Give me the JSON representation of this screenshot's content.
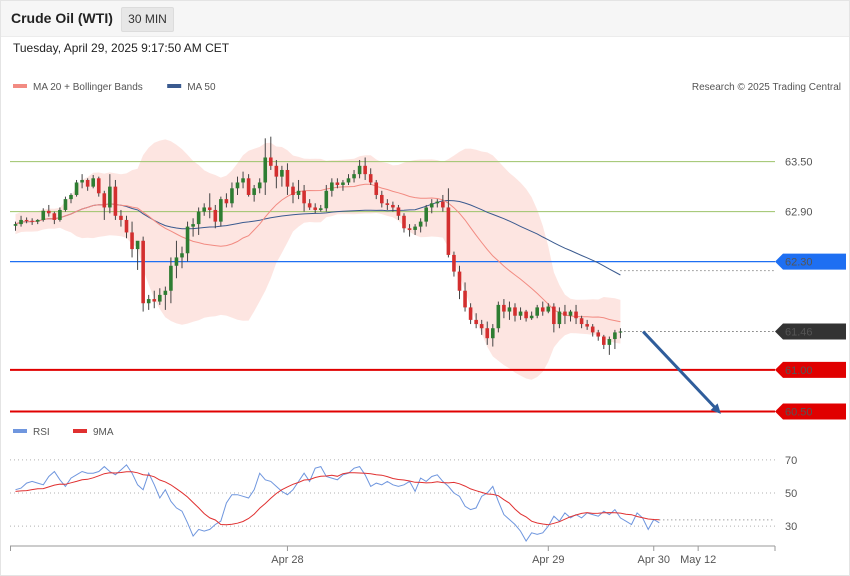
{
  "header": {
    "title": "Crude Oil (WTI)",
    "timeframe": "30 MIN",
    "datetime": "Tuesday, April 29, 2025 9:17:50 AM CET"
  },
  "colors": {
    "bullish": "#2e7d32",
    "bearish": "#d32f2f",
    "ma20": "#f28b82",
    "band_fill": "#fde0dc",
    "ma50": "#3a5a8f",
    "support": "#e00000",
    "pivot": "#1e6ff2",
    "resistance": "#9dc36a",
    "last_price": "#333333",
    "arrow": "#2f5d9b",
    "rsi": "#6f96de",
    "rsi_ma": "#e03030"
  },
  "chart_data": [
    {
      "type": "candlestick",
      "legend": [
        {
          "label": "MA 20 + Bollinger Bands",
          "color": "#f28b82"
        },
        {
          "label": "MA 50",
          "color": "#3a5a8f"
        }
      ],
      "credit": "Research © 2025 Trading Central",
      "y_ticks": [
        "63.50",
        "62.90",
        "62.30",
        "61.46",
        "61.00",
        "60.50"
      ],
      "ylim": [
        60.47,
        63.88
      ],
      "x_ticks": [
        {
          "label": "Apr 28",
          "index": 49
        },
        {
          "label": "Apr 29",
          "index": 96
        },
        {
          "label": "Apr 30",
          "index": 115
        },
        {
          "label": "May 12",
          "index": 123
        }
      ],
      "levels": [
        {
          "label": "63.50",
          "value": 63.5,
          "role": "resistance"
        },
        {
          "label": "62.90",
          "value": 62.9,
          "role": "resistance"
        },
        {
          "label": "62.30",
          "value": 62.3,
          "role": "pivot"
        },
        {
          "label": "61.46",
          "value": 61.46,
          "role": "last"
        },
        {
          "label": "61.00",
          "value": 61.0,
          "role": "support"
        },
        {
          "label": "60.50",
          "value": 60.5,
          "role": "support"
        }
      ],
      "forecast_arrow": {
        "from_index": 112,
        "from_value": 61.46,
        "to_index": 126,
        "to_value": 60.5
      },
      "candles": [
        [
          62.73,
          62.78,
          62.67,
          62.75
        ],
        [
          62.75,
          62.85,
          62.72,
          62.8
        ],
        [
          62.8,
          62.83,
          62.76,
          62.79
        ],
        [
          62.79,
          62.82,
          62.74,
          62.78
        ],
        [
          62.78,
          62.81,
          62.75,
          62.8
        ],
        [
          62.8,
          62.94,
          62.78,
          62.91
        ],
        [
          62.91,
          62.98,
          62.84,
          62.88
        ],
        [
          62.88,
          62.9,
          62.75,
          62.8
        ],
        [
          62.8,
          62.95,
          62.78,
          62.92
        ],
        [
          62.92,
          63.08,
          62.9,
          63.05
        ],
        [
          63.05,
          63.12,
          63.0,
          63.1
        ],
        [
          63.1,
          63.28,
          63.08,
          63.25
        ],
        [
          63.25,
          63.35,
          63.18,
          63.28
        ],
        [
          63.28,
          63.3,
          63.15,
          63.2
        ],
        [
          63.2,
          63.34,
          63.18,
          63.3
        ],
        [
          63.3,
          63.32,
          63.08,
          63.12
        ],
        [
          63.12,
          63.15,
          62.8,
          62.95
        ],
        [
          62.95,
          63.35,
          62.88,
          63.2
        ],
        [
          63.2,
          63.28,
          62.8,
          62.85
        ],
        [
          62.85,
          62.92,
          62.72,
          62.8
        ],
        [
          62.8,
          62.85,
          62.58,
          62.65
        ],
        [
          62.65,
          62.78,
          62.35,
          62.45
        ],
        [
          62.45,
          62.52,
          62.2,
          62.55
        ],
        [
          62.55,
          62.6,
          61.7,
          61.8
        ],
        [
          61.8,
          61.9,
          61.72,
          61.85
        ],
        [
          61.85,
          61.95,
          61.74,
          61.82
        ],
        [
          61.82,
          61.98,
          61.78,
          61.9
        ],
        [
          61.9,
          62.0,
          61.72,
          61.95
        ],
        [
          61.95,
          62.35,
          61.8,
          62.25
        ],
        [
          62.25,
          62.55,
          62.1,
          62.35
        ],
        [
          62.35,
          62.48,
          62.22,
          62.4
        ],
        [
          62.4,
          62.78,
          62.3,
          62.72
        ],
        [
          62.72,
          62.82,
          62.6,
          62.75
        ],
        [
          62.75,
          62.95,
          62.62,
          62.9
        ],
        [
          62.9,
          63.0,
          62.85,
          62.95
        ],
        [
          62.95,
          63.12,
          62.82,
          62.92
        ],
        [
          62.92,
          62.98,
          62.7,
          62.78
        ],
        [
          62.78,
          63.08,
          62.72,
          63.05
        ],
        [
          63.05,
          63.12,
          62.95,
          63.0
        ],
        [
          63.0,
          63.25,
          62.95,
          63.18
        ],
        [
          63.18,
          63.32,
          63.1,
          63.25
        ],
        [
          63.25,
          63.38,
          63.18,
          63.3
        ],
        [
          63.3,
          63.35,
          63.08,
          63.1
        ],
        [
          63.1,
          63.22,
          63.02,
          63.18
        ],
        [
          63.18,
          63.3,
          63.12,
          63.25
        ],
        [
          63.25,
          63.78,
          63.1,
          63.55
        ],
        [
          63.55,
          63.8,
          63.4,
          63.45
        ],
        [
          63.45,
          63.52,
          63.18,
          63.32
        ],
        [
          63.32,
          63.45,
          63.2,
          63.4
        ],
        [
          63.4,
          63.48,
          63.1,
          63.2
        ],
        [
          63.2,
          63.25,
          63.0,
          63.1
        ],
        [
          63.1,
          63.28,
          63.05,
          63.15
        ],
        [
          63.15,
          63.22,
          62.9,
          63.0
        ],
        [
          63.0,
          63.05,
          62.92,
          62.95
        ],
        [
          62.95,
          63.0,
          62.88,
          62.92
        ],
        [
          62.92,
          62.98,
          62.9,
          62.94
        ],
        [
          62.94,
          63.22,
          62.9,
          63.15
        ],
        [
          63.15,
          63.3,
          63.08,
          63.25
        ],
        [
          63.25,
          63.3,
          63.18,
          63.22
        ],
        [
          63.22,
          63.28,
          63.15,
          63.25
        ],
        [
          63.25,
          63.35,
          63.22,
          63.3
        ],
        [
          63.3,
          63.4,
          63.25,
          63.35
        ],
        [
          63.35,
          63.52,
          63.3,
          63.45
        ],
        [
          63.45,
          63.55,
          63.28,
          63.35
        ],
        [
          63.35,
          63.42,
          63.22,
          63.25
        ],
        [
          63.25,
          63.28,
          63.05,
          63.1
        ],
        [
          63.1,
          63.15,
          62.95,
          63.0
        ],
        [
          63.0,
          63.05,
          62.92,
          62.98
        ],
        [
          62.98,
          63.02,
          62.9,
          62.95
        ],
        [
          62.95,
          62.98,
          62.8,
          62.85
        ],
        [
          62.85,
          62.88,
          62.65,
          62.7
        ],
        [
          62.7,
          62.75,
          62.6,
          62.68
        ],
        [
          62.68,
          62.75,
          62.62,
          62.72
        ],
        [
          62.72,
          62.82,
          62.65,
          62.78
        ],
        [
          62.78,
          62.98,
          62.72,
          62.95
        ],
        [
          62.95,
          63.05,
          62.88,
          63.0
        ],
        [
          63.0,
          63.05,
          62.95,
          63.02
        ],
        [
          63.02,
          63.1,
          62.9,
          62.95
        ],
        [
          62.95,
          63.18,
          62.35,
          62.38
        ],
        [
          62.38,
          62.42,
          62.12,
          62.18
        ],
        [
          62.18,
          62.25,
          61.85,
          61.95
        ],
        [
          61.95,
          62.05,
          61.7,
          61.75
        ],
        [
          61.75,
          61.8,
          61.55,
          61.6
        ],
        [
          61.6,
          61.68,
          61.5,
          61.55
        ],
        [
          61.55,
          61.6,
          61.42,
          61.5
        ],
        [
          61.5,
          61.58,
          61.3,
          61.38
        ],
        [
          61.38,
          61.55,
          61.28,
          61.5
        ],
        [
          61.5,
          61.82,
          61.45,
          61.78
        ],
        [
          61.78,
          61.85,
          61.62,
          61.7
        ],
        [
          61.7,
          61.82,
          61.6,
          61.75
        ],
        [
          61.75,
          61.8,
          61.58,
          61.65
        ],
        [
          61.65,
          61.75,
          61.6,
          61.7
        ],
        [
          61.7,
          61.72,
          61.58,
          61.62
        ],
        [
          61.62,
          61.7,
          61.6,
          61.65
        ],
        [
          61.65,
          61.78,
          61.62,
          61.75
        ],
        [
          61.75,
          61.82,
          61.65,
          61.7
        ],
        [
          61.7,
          61.8,
          61.68,
          61.76
        ],
        [
          61.76,
          61.8,
          61.45,
          61.55
        ],
        [
          61.55,
          61.75,
          61.5,
          61.7
        ],
        [
          61.7,
          61.78,
          61.55,
          61.65
        ],
        [
          61.65,
          61.72,
          61.58,
          61.7
        ],
        [
          61.7,
          61.78,
          61.55,
          61.62
        ],
        [
          61.62,
          61.65,
          61.5,
          61.55
        ],
        [
          61.55,
          61.6,
          61.48,
          61.52
        ],
        [
          61.52,
          61.55,
          61.4,
          61.45
        ],
        [
          61.45,
          61.48,
          61.35,
          61.4
        ],
        [
          61.4,
          61.42,
          61.25,
          61.3
        ],
        [
          61.3,
          61.4,
          61.18,
          61.37
        ],
        [
          61.37,
          61.48,
          61.25,
          61.45
        ],
        [
          61.45,
          61.5,
          61.38,
          61.46
        ]
      ]
    },
    {
      "type": "line",
      "legend": [
        {
          "label": "RSI",
          "color": "#6f96de"
        },
        {
          "label": "9MA",
          "color": "#e03030"
        }
      ],
      "y_ticks": [
        70,
        50,
        30
      ],
      "ylim": [
        18,
        76
      ],
      "series": [
        {
          "name": "RSI",
          "values": [
            52,
            53,
            56,
            57,
            56,
            55,
            60,
            63,
            58,
            54,
            59,
            61,
            63,
            62,
            62,
            63,
            66,
            63,
            61,
            64,
            67,
            62,
            55,
            52,
            62,
            55,
            47,
            52,
            45,
            41,
            39,
            32,
            24,
            28,
            27,
            28,
            31,
            33,
            44,
            49,
            49,
            48,
            47,
            52,
            62,
            58,
            57,
            54,
            51,
            49,
            52,
            57,
            62,
            57,
            65,
            66,
            60,
            59,
            58,
            61,
            62,
            65,
            66,
            61,
            54,
            56,
            55,
            57,
            55,
            54,
            55,
            57,
            51,
            59,
            57,
            60,
            61,
            57,
            54,
            50,
            48,
            42,
            40,
            41,
            48,
            50,
            54,
            45,
            37,
            34,
            31,
            27,
            21,
            26,
            25,
            26,
            30,
            36,
            33,
            38,
            35,
            37,
            35,
            38,
            37,
            36,
            39,
            37,
            40,
            35,
            33,
            31,
            38,
            35,
            28,
            34,
            32
          ]
        },
        {
          "name": "9MA",
          "values": [
            51.0,
            51.3,
            51.5,
            52.1,
            52.6,
            52.7,
            53.7,
            54.8,
            55.4,
            55.3,
            56.2,
            57.0,
            58.0,
            58.3,
            59.2,
            60.4,
            61.7,
            62.3,
            62.1,
            62.4,
            62.9,
            62.9,
            62.2,
            61.1,
            60.8,
            59.8,
            57.9,
            56.7,
            54.9,
            52.6,
            50.2,
            47.6,
            44.3,
            41.0,
            37.6,
            35.0,
            33.7,
            31.0,
            30.8,
            31.1,
            31.8,
            32.8,
            34.6,
            37.3,
            40.8,
            43.7,
            46.8,
            49.7,
            52.0,
            53.7,
            55.3,
            56.4,
            57.9,
            58.1,
            59.4,
            60.1,
            60.3,
            60.8,
            60.1,
            61.7,
            62.2,
            62.3,
            62.1,
            61.9,
            61.6,
            61.1,
            60.8,
            59.9,
            58.8,
            58.2,
            57.9,
            57.3,
            56.5,
            56.4,
            56.1,
            56.3,
            56.8,
            56.3,
            56.1,
            56.4,
            55.6,
            54.2,
            52.5,
            51.4,
            50.4,
            49.4,
            49.2,
            48.4,
            46.0,
            43.9,
            40.3,
            37.4,
            35.6,
            33.0,
            31.9,
            31.3,
            30.8,
            31.7,
            32.7,
            34.2,
            35.7,
            36.7,
            37.7,
            38.2,
            37.7,
            37.8,
            38.1,
            38.2,
            38.1,
            37.9,
            37.2,
            36.9,
            35.8,
            35.1,
            34.3,
            34.0,
            33.8
          ]
        }
      ]
    }
  ]
}
